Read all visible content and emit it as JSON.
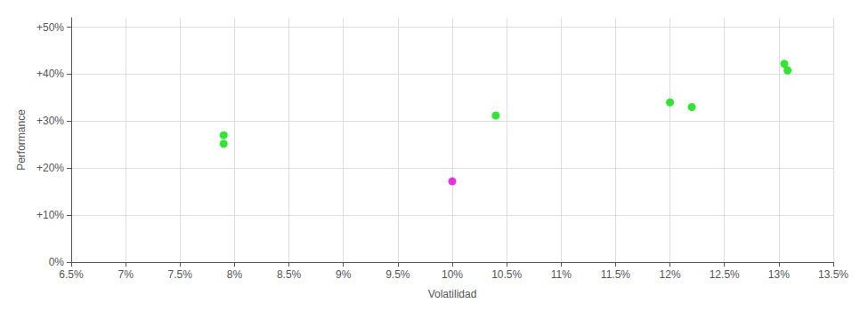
{
  "chart_data": {
    "type": "scatter",
    "xlabel": "Volatilidad",
    "ylabel": "Performance",
    "xlim": [
      0.065,
      0.135
    ],
    "ylim": [
      0.0,
      0.52
    ],
    "xticks": [
      {
        "value": 0.065,
        "label": "6.5%"
      },
      {
        "value": 0.07,
        "label": "7%"
      },
      {
        "value": 0.075,
        "label": "7.5%"
      },
      {
        "value": 0.08,
        "label": "8%"
      },
      {
        "value": 0.085,
        "label": "8.5%"
      },
      {
        "value": 0.09,
        "label": "9%"
      },
      {
        "value": 0.095,
        "label": "9.5%"
      },
      {
        "value": 0.1,
        "label": "10%"
      },
      {
        "value": 0.105,
        "label": "10.5%"
      },
      {
        "value": 0.11,
        "label": "11%"
      },
      {
        "value": 0.115,
        "label": "11.5%"
      },
      {
        "value": 0.12,
        "label": "12%"
      },
      {
        "value": 0.125,
        "label": "12.5%"
      },
      {
        "value": 0.13,
        "label": "13%"
      },
      {
        "value": 0.135,
        "label": "13.5%"
      }
    ],
    "yticks": [
      {
        "value": 0.0,
        "label": "0%"
      },
      {
        "value": 0.1,
        "label": "+10%"
      },
      {
        "value": 0.2,
        "label": "+20%"
      },
      {
        "value": 0.3,
        "label": "+30%"
      },
      {
        "value": 0.4,
        "label": "+40%"
      },
      {
        "value": 0.5,
        "label": "+50%"
      }
    ],
    "grid": true,
    "marker": "circle",
    "series": [
      {
        "color": "#00dd00",
        "x": [
          0.079,
          0.079,
          0.104,
          0.12,
          0.122,
          0.1305,
          0.1308
        ],
        "values": [
          0.27,
          0.252,
          0.312,
          0.34,
          0.33,
          0.422,
          0.408
        ]
      },
      {
        "color": "#dd00dd",
        "x": [
          0.1
        ],
        "values": [
          0.172
        ]
      }
    ]
  }
}
